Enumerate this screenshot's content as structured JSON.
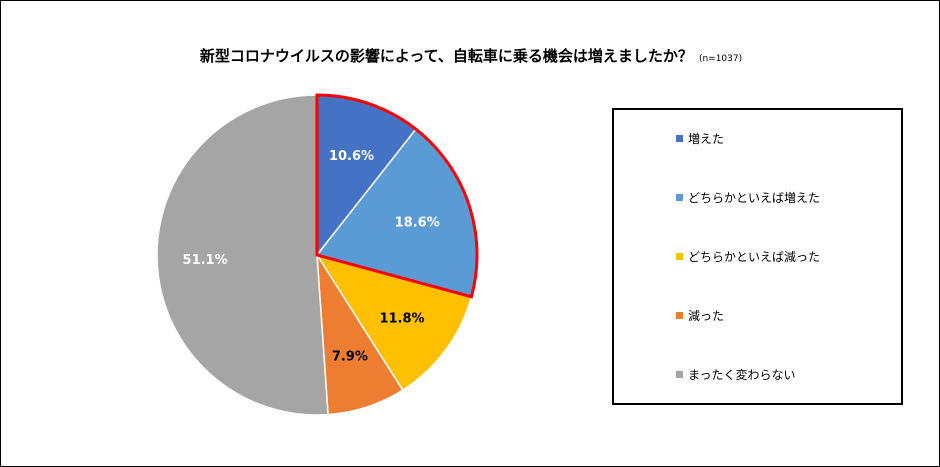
{
  "title": {
    "text": "新型コロナウイルスの影響によって、自転車に乗る機会は増えましたか？",
    "note": "(n=1037)"
  },
  "chart_data": {
    "type": "pie",
    "title": "新型コロナウイルスの影響によって、自転車に乗る機会は増えましたか？",
    "subtitle": "(n=1037)",
    "legend_position": "right",
    "slices": [
      {
        "label": "増えた",
        "value": 10.6,
        "value_label": "10.6%",
        "color": "#4472C4",
        "text_color": "#ffffff"
      },
      {
        "label": "どちらかといえば増えた",
        "value": 18.6,
        "value_label": "18.6%",
        "color": "#5B9BD5",
        "text_color": "#ffffff"
      },
      {
        "label": "どちらかといえば減った",
        "value": 11.8,
        "value_label": "11.8%",
        "color": "#FFC000",
        "text_color": "#000000"
      },
      {
        "label": "減った",
        "value": 7.9,
        "value_label": "7.9%",
        "color": "#ED7D31",
        "text_color": "#000000"
      },
      {
        "label": "まったく変わらない",
        "value": 51.1,
        "value_label": "51.1%",
        "color": "#A5A5A5",
        "text_color": "#ffffff"
      }
    ],
    "highlight": {
      "slices": [
        "増えた",
        "どちらかといえば増えた"
      ],
      "outline_color": "#FF0000"
    }
  }
}
